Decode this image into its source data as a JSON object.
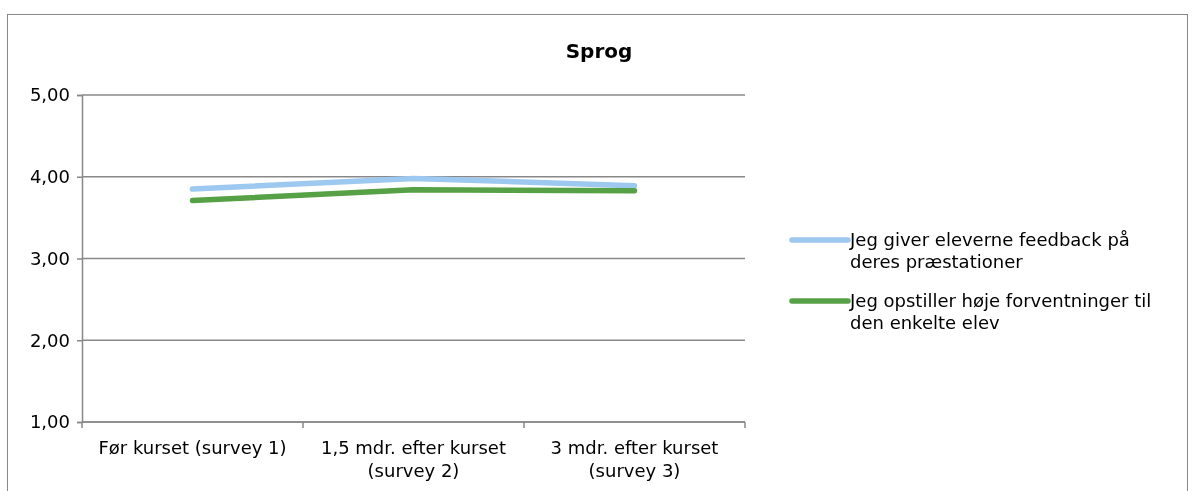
{
  "chart_data": {
    "type": "line",
    "title": "Sprog",
    "categories": [
      "Før kurset (survey 1)",
      "1,5 mdr. efter kurset (survey 2)",
      "3 mdr. efter kurset (survey 3)"
    ],
    "series": [
      {
        "name": "Jeg giver eleverne feedback på deres præstationer",
        "color": "#9dc8ef",
        "values": [
          3.85,
          3.98,
          3.89
        ]
      },
      {
        "name": "Jeg opstiller høje forventninger til den enkelte elev",
        "color": "#56a045",
        "values": [
          3.71,
          3.84,
          3.83
        ]
      }
    ],
    "ylim": [
      1,
      5
    ],
    "yticks": [
      {
        "value": 1,
        "label": "1,00"
      },
      {
        "value": 2,
        "label": "2,00"
      },
      {
        "value": 3,
        "label": "3,00"
      },
      {
        "value": 4,
        "label": "4,00"
      },
      {
        "value": 5,
        "label": "5,00"
      }
    ],
    "grid": "y",
    "legend": "right",
    "marker": "none",
    "line_style": "solid"
  }
}
